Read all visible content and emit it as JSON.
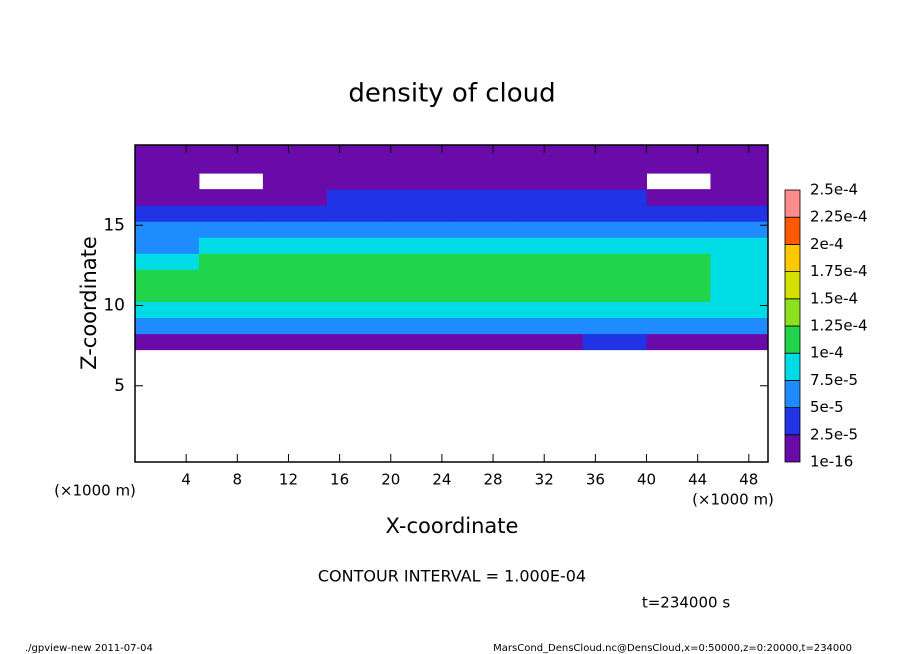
{
  "chart_data": {
    "type": "heatmap",
    "title": "density of cloud",
    "xlabel": "X-coordinate",
    "ylabel": "Z-coordinate",
    "x_unit": "(×1000 m)",
    "x_unit_right": "(×1000 m)",
    "x": [
      2.5,
      7.5,
      12.5,
      17.5,
      22.5,
      27.5,
      32.5,
      37.5,
      42.5,
      47.5
    ],
    "y": [
      0.75,
      1.75,
      2.75,
      3.75,
      4.75,
      5.75,
      6.75,
      7.75,
      8.75,
      9.75,
      10.75,
      11.75,
      12.75,
      13.75,
      14.75,
      15.75,
      16.75,
      17.75,
      18.75,
      19.75
    ],
    "values": [
      [
        null,
        null,
        null,
        null,
        null,
        null,
        null,
        null,
        null,
        null
      ],
      [
        null,
        null,
        null,
        null,
        null,
        null,
        null,
        null,
        null,
        null
      ],
      [
        null,
        null,
        null,
        null,
        null,
        null,
        null,
        null,
        null,
        null
      ],
      [
        null,
        null,
        null,
        null,
        null,
        null,
        null,
        null,
        null,
        null
      ],
      [
        null,
        null,
        null,
        null,
        null,
        null,
        null,
        null,
        null,
        null
      ],
      [
        null,
        null,
        null,
        null,
        null,
        null,
        null,
        null,
        null,
        null
      ],
      [
        null,
        null,
        null,
        null,
        null,
        null,
        null,
        null,
        null,
        null
      ],
      [
        2e-05,
        2e-05,
        2e-05,
        1.5e-05,
        1.5e-05,
        2e-05,
        2e-05,
        3e-05,
        2e-05,
        2e-05
      ],
      [
        6e-05,
        6e-05,
        5e-05,
        5.5e-05,
        6e-05,
        6e-05,
        6e-05,
        5e-05,
        6e-05,
        6e-05
      ],
      [
        8.5e-05,
        8.5e-05,
        8e-05,
        8.5e-05,
        9e-05,
        9e-05,
        9e-05,
        8e-05,
        8.5e-05,
        8.5e-05
      ],
      [
        0.000105,
        0.000105,
        0.000105,
        0.00011,
        0.00011,
        0.00011,
        0.000105,
        0.000105,
        0.000105,
        9e-05
      ],
      [
        0.000105,
        0.00011,
        0.000115,
        0.00012,
        0.00012,
        0.00012,
        0.00011,
        0.00011,
        0.000105,
        9.5e-05
      ],
      [
        9e-05,
        0.0001,
        0.000105,
        0.00011,
        0.000105,
        0.000105,
        0.000105,
        0.000105,
        0.0001,
        9e-05
      ],
      [
        7e-05,
        8e-05,
        8.5e-05,
        9e-05,
        9e-05,
        9e-05,
        8.5e-05,
        8.5e-05,
        8e-05,
        7.5e-05
      ],
      [
        5e-05,
        5.5e-05,
        6e-05,
        6.5e-05,
        6.5e-05,
        6e-05,
        6e-05,
        6e-05,
        5.5e-05,
        5e-05
      ],
      [
        3e-05,
        3e-05,
        4e-05,
        4e-05,
        4e-05,
        3.5e-05,
        3.5e-05,
        3.5e-05,
        3e-05,
        3e-05
      ],
      [
        2e-05,
        2e-05,
        2e-05,
        2.5e-05,
        2.5e-05,
        2.5e-05,
        2.5e-05,
        2.5e-05,
        2e-05,
        2e-05
      ],
      [
        1.5e-05,
        null,
        1.5e-05,
        2e-05,
        1.5e-05,
        1.5e-05,
        1.5e-05,
        1.5e-05,
        null,
        1.5e-05
      ],
      [
        1e-05,
        1e-05,
        1e-05,
        1e-05,
        1e-05,
        1e-05,
        1e-05,
        1e-05,
        1e-05,
        1e-05
      ],
      [
        1e-05,
        1e-05,
        1e-05,
        1e-05,
        1e-05,
        1e-05,
        1e-05,
        1e-05,
        1e-05,
        1e-05
      ]
    ],
    "xlim": [
      0,
      49.5
    ],
    "ylim": [
      0.25,
      20
    ],
    "xticks": [
      4,
      8,
      12,
      16,
      20,
      24,
      28,
      32,
      36,
      40,
      44,
      48
    ],
    "yticks": [
      5,
      10,
      15
    ],
    "colorbar": {
      "ticks": [
        {
          "value": 1e-16,
          "label": "1e-16"
        },
        {
          "value": 2.5e-05,
          "label": "2.5e-5"
        },
        {
          "value": 5e-05,
          "label": "5e-5"
        },
        {
          "value": 7.5e-05,
          "label": "7.5e-5"
        },
        {
          "value": 0.0001,
          "label": "1e-4"
        },
        {
          "value": 0.000125,
          "label": "1.25e-4"
        },
        {
          "value": 0.00015,
          "label": "1.5e-4"
        },
        {
          "value": 0.000175,
          "label": "1.75e-4"
        },
        {
          "value": 0.0002,
          "label": "2e-4"
        },
        {
          "value": 0.000225,
          "label": "2.25e-4"
        },
        {
          "value": 0.00025,
          "label": "2.5e-4"
        }
      ],
      "colors": [
        "#6a0aa8",
        "#2034e6",
        "#1e8cff",
        "#00dce6",
        "#22d44a",
        "#8ce020",
        "#d4e000",
        "#ffc800",
        "#ff5a00",
        "#ff8c8c"
      ]
    },
    "contour_note": "CONTOUR INTERVAL = 1.000E-04",
    "time_note": "t=234000 s",
    "footer_left": "./gpview-new  2011-07-04",
    "footer_right": "MarsCond_DensCloud.nc@DensCloud,x=0:50000,z=0:20000,t=234000"
  }
}
